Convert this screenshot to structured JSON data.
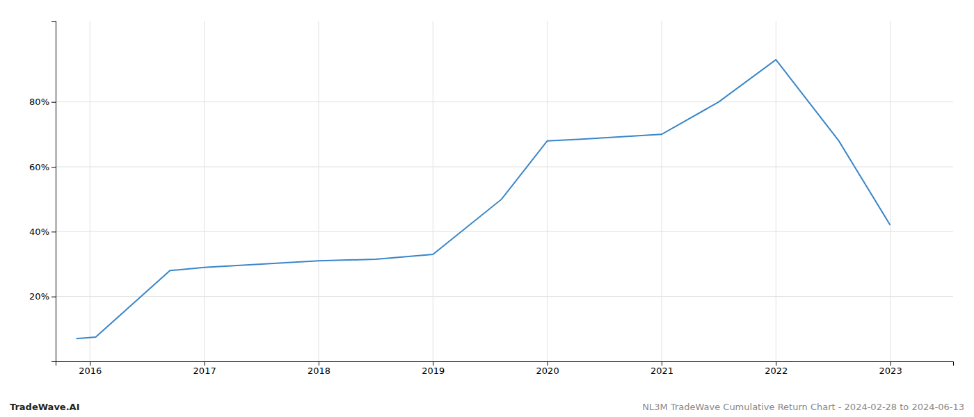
{
  "chart_data": {
    "type": "line",
    "x": [
      2015.88,
      2016.05,
      2016.7,
      2017.0,
      2017.5,
      2018.0,
      2018.5,
      2019.0,
      2019.6,
      2020.0,
      2020.3,
      2021.0,
      2021.5,
      2022.0,
      2022.55,
      2023.0
    ],
    "values": [
      7,
      7.5,
      28,
      29,
      30,
      31,
      31.5,
      33,
      50,
      68,
      68.5,
      70,
      80,
      93,
      68,
      42
    ],
    "color": "#3a86c8",
    "xlim": [
      2015.7,
      2023.55
    ],
    "ylim": [
      0,
      105
    ],
    "xticks": [
      2016,
      2017,
      2018,
      2019,
      2020,
      2021,
      2022,
      2023
    ],
    "yticks": [
      {
        "value": 20,
        "label": "20%"
      },
      {
        "value": 40,
        "label": "40%"
      },
      {
        "value": 60,
        "label": "60%"
      },
      {
        "value": 80,
        "label": "80%"
      }
    ],
    "grid": true,
    "annotations": [
      "TradeWave.AI",
      "NL3M TradeWave Cumulative Return Chart - 2024-02-28 to 2024-06-13"
    ]
  }
}
